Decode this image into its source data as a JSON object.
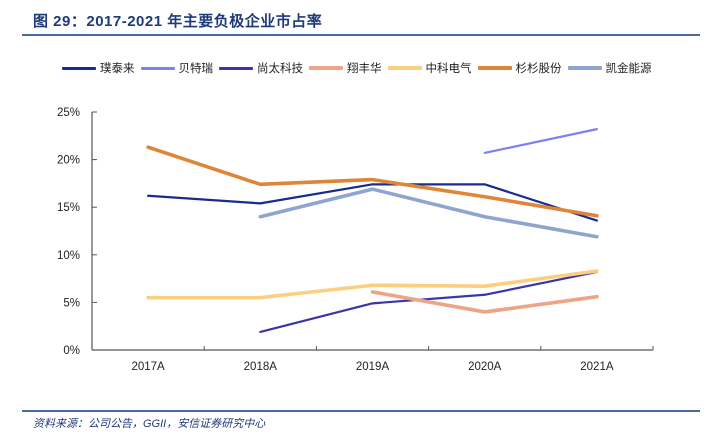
{
  "figure": {
    "title": "图 29：2017-2021 年主要负极企业市占率",
    "source": "资料来源：公司公告，GGII，安信证券研究中心"
  },
  "chart_data": {
    "type": "line",
    "title": "2017-2021 年主要负极企业市占率",
    "xlabel": "",
    "ylabel": "",
    "categories": [
      "2017A",
      "2018A",
      "2019A",
      "2020A",
      "2021A"
    ],
    "ylim": [
      0,
      25
    ],
    "y_ticks": [
      0,
      5,
      10,
      15,
      20,
      25
    ],
    "y_tick_labels": [
      "0%",
      "5%",
      "10%",
      "15%",
      "20%",
      "25%"
    ],
    "y_unit": "%",
    "grid": false,
    "legend_position": "top",
    "series": [
      {
        "name": "璞泰来",
        "color": "#1a2b8e",
        "width": "thin",
        "values": [
          16.2,
          15.4,
          17.4,
          17.4,
          13.6
        ]
      },
      {
        "name": "贝特瑞",
        "color": "#7f7ff2",
        "width": "thin",
        "values": [
          null,
          null,
          null,
          20.7,
          23.2
        ]
      },
      {
        "name": "尚太科技",
        "color": "#3b35a8",
        "width": "thin",
        "values": [
          null,
          1.9,
          4.9,
          5.8,
          8.2
        ]
      },
      {
        "name": "翔丰华",
        "color": "#eea486",
        "width": "thick",
        "values": [
          null,
          null,
          6.1,
          4.0,
          5.6
        ]
      },
      {
        "name": "中科电气",
        "color": "#fbcf80",
        "width": "thick",
        "values": [
          5.5,
          5.5,
          6.8,
          6.7,
          8.3
        ]
      },
      {
        "name": "杉杉股份",
        "color": "#df8538",
        "width": "thick",
        "values": [
          21.3,
          17.4,
          17.9,
          16.1,
          14.1
        ]
      },
      {
        "name": "凯金能源",
        "color": "#8fa5cf",
        "width": "thick",
        "values": [
          null,
          14.0,
          16.9,
          14.0,
          11.9
        ]
      }
    ]
  }
}
